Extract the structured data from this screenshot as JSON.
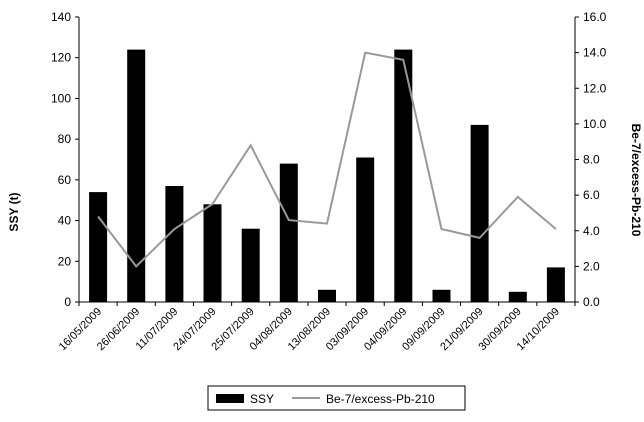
{
  "chart_data": {
    "type": "bar",
    "categories": [
      "16/05/2009",
      "26/06/2009",
      "11/07/2009",
      "24/07/2009",
      "25/07/2009",
      "04/08/2009",
      "13/08/2009",
      "03/09/2009",
      "04/09/2009",
      "09/09/2009",
      "21/09/2009",
      "30/09/2009",
      "14/10/2009"
    ],
    "series": [
      {
        "name": "SSY",
        "type": "bar",
        "axis": "left",
        "color": "#000000",
        "values": [
          54,
          124,
          57,
          48,
          36,
          68,
          6,
          71,
          124,
          6,
          87,
          5,
          17
        ]
      },
      {
        "name": "Be-7/excess-Pb-210",
        "type": "line",
        "axis": "right",
        "color": "#999999",
        "values": [
          4.8,
          2.0,
          4.1,
          5.5,
          8.8,
          4.6,
          4.4,
          14.0,
          13.6,
          4.1,
          3.6,
          5.9,
          4.1
        ]
      }
    ],
    "ylabel": "SSY (t)",
    "y2label": "Be-7/excess-Pb-210",
    "ylim": [
      0,
      140
    ],
    "y2lim": [
      0,
      16
    ],
    "yticks": [
      "0",
      "20",
      "40",
      "60",
      "80",
      "100",
      "120",
      "140"
    ],
    "y2ticks": [
      "0.0",
      "2.0",
      "4.0",
      "6.0",
      "8.0",
      "10.0",
      "12.0",
      "14.0",
      "16.0"
    ],
    "grid": false,
    "legend_position": "bottom"
  }
}
